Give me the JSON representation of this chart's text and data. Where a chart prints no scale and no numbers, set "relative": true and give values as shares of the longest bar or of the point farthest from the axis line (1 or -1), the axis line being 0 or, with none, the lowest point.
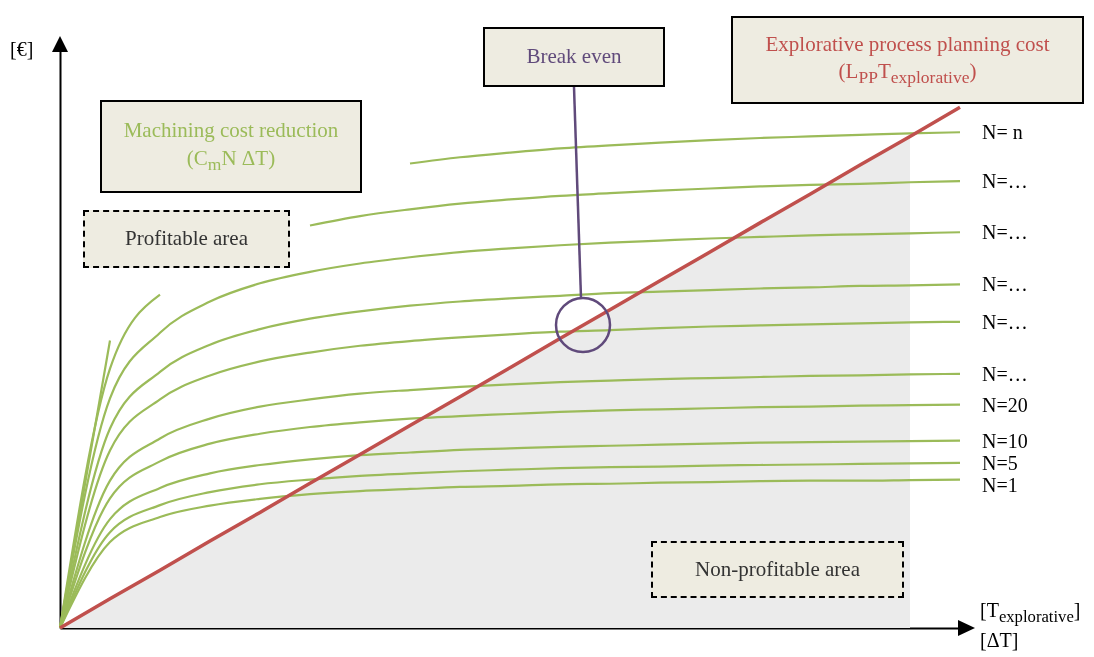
{
  "chart_data": {
    "type": "line",
    "relative": true,
    "grid": false,
    "ylabel": "[€]",
    "xlabel": "[T$_{explorative}$]\n[ΔT]",
    "categories": [
      null,
      null,
      null,
      null,
      null,
      null,
      null,
      null,
      null,
      null,
      null,
      null,
      null,
      null,
      null,
      null,
      null,
      null,
      null
    ],
    "series": [
      {
        "type": "area",
        "color": "#ebebeb",
        "values": [
          0,
          0.056,
          0.111,
          0.167,
          0.222,
          0.278,
          0.333,
          0.389,
          0.444,
          0.5,
          0.556,
          0.611,
          0.667,
          0.722,
          0.778,
          0.833,
          0.889,
          0.944,
          null
        ]
      },
      {
        "name": "N= n",
        "color": "#9bbb59",
        "values": [
          0,
          0.552,
          null,
          null,
          null,
          null,
          null,
          0.892,
          0.904,
          0.913,
          0.921,
          0.927,
          0.932,
          0.937,
          0.941,
          0.944,
          0.947,
          0.95,
          0.952
        ]
      },
      {
        "name": "N=…",
        "color": "#9bbb59",
        "values": [
          0,
          0.498,
          0.64,
          null,
          null,
          0.773,
          0.791,
          0.804,
          0.815,
          0.823,
          0.83,
          0.835,
          0.84,
          0.844,
          0.848,
          0.851,
          0.853,
          0.856,
          0.858
        ]
      },
      {
        "name": "N=…",
        "color": "#9bbb59",
        "values": [
          0,
          0.441,
          0.567,
          0.627,
          0.662,
          0.684,
          0.7,
          0.712,
          0.722,
          0.729,
          0.735,
          0.74,
          0.744,
          0.748,
          0.751,
          0.754,
          0.756,
          0.758,
          0.76
        ]
      },
      {
        "name": "N=…",
        "color": "#9bbb59",
        "values": [
          0,
          0.383,
          0.492,
          0.544,
          0.574,
          0.594,
          0.608,
          0.619,
          0.627,
          0.633,
          0.638,
          0.643,
          0.646,
          0.649,
          0.652,
          0.654,
          0.657,
          0.658,
          0.66
        ]
      },
      {
        "name": "N=…",
        "color": "#9bbb59",
        "values": [
          0,
          0.341,
          0.439,
          0.485,
          0.512,
          0.529,
          0.542,
          0.551,
          0.558,
          0.564,
          0.569,
          0.572,
          0.576,
          0.579,
          0.581,
          0.583,
          0.585,
          0.587,
          0.588
        ]
      },
      {
        "name": "N=…",
        "color": "#9bbb59",
        "values": [
          0,
          0.283,
          0.364,
          0.402,
          0.425,
          0.439,
          0.45,
          0.457,
          0.463,
          0.468,
          0.472,
          0.475,
          0.478,
          0.48,
          0.482,
          0.484,
          0.485,
          0.487,
          0.488
        ]
      },
      {
        "name": "N=20",
        "color": "#9bbb59",
        "values": [
          0,
          0.249,
          0.32,
          0.354,
          0.373,
          0.386,
          0.395,
          0.402,
          0.407,
          0.411,
          0.415,
          0.418,
          0.42,
          0.422,
          0.424,
          0.425,
          0.427,
          0.428,
          0.429
        ]
      },
      {
        "name": "N=10",
        "color": "#9bbb59",
        "values": [
          0,
          0.209,
          0.269,
          0.297,
          0.313,
          0.324,
          0.332,
          0.337,
          0.342,
          0.345,
          0.348,
          0.35,
          0.352,
          0.354,
          0.356,
          0.357,
          0.358,
          0.359,
          0.36
        ]
      },
      {
        "name": "N=5",
        "color": "#9bbb59",
        "values": [
          0,
          0.184,
          0.236,
          0.261,
          0.276,
          0.285,
          0.292,
          0.297,
          0.301,
          0.304,
          0.307,
          0.309,
          0.31,
          0.312,
          0.313,
          0.314,
          0.315,
          0.316,
          0.317
        ]
      },
      {
        "name": "N=1",
        "color": "#9bbb59",
        "values": [
          0,
          0.165,
          0.213,
          0.235,
          0.248,
          0.257,
          0.263,
          0.267,
          0.271,
          0.273,
          0.276,
          0.277,
          0.279,
          0.28,
          0.282,
          0.283,
          0.283,
          0.284,
          0.285
        ]
      },
      {
        "type": "line",
        "color": "#c0504d",
        "values": [
          0,
          0.056,
          0.111,
          0.167,
          0.222,
          0.278,
          0.333,
          0.389,
          0.444,
          0.5,
          0.556,
          0.611,
          0.667,
          0.722,
          0.778,
          0.833,
          0.889,
          0.944,
          1
        ]
      }
    ],
    "annotations": [
      "Machining cost reduction (C$_{m}$N ΔT)",
      "Profitable area",
      "Break even",
      "Explorative process planning cost (L$_{PP}$T$_{explorative}$)",
      "Non-profitable area"
    ]
  }
}
